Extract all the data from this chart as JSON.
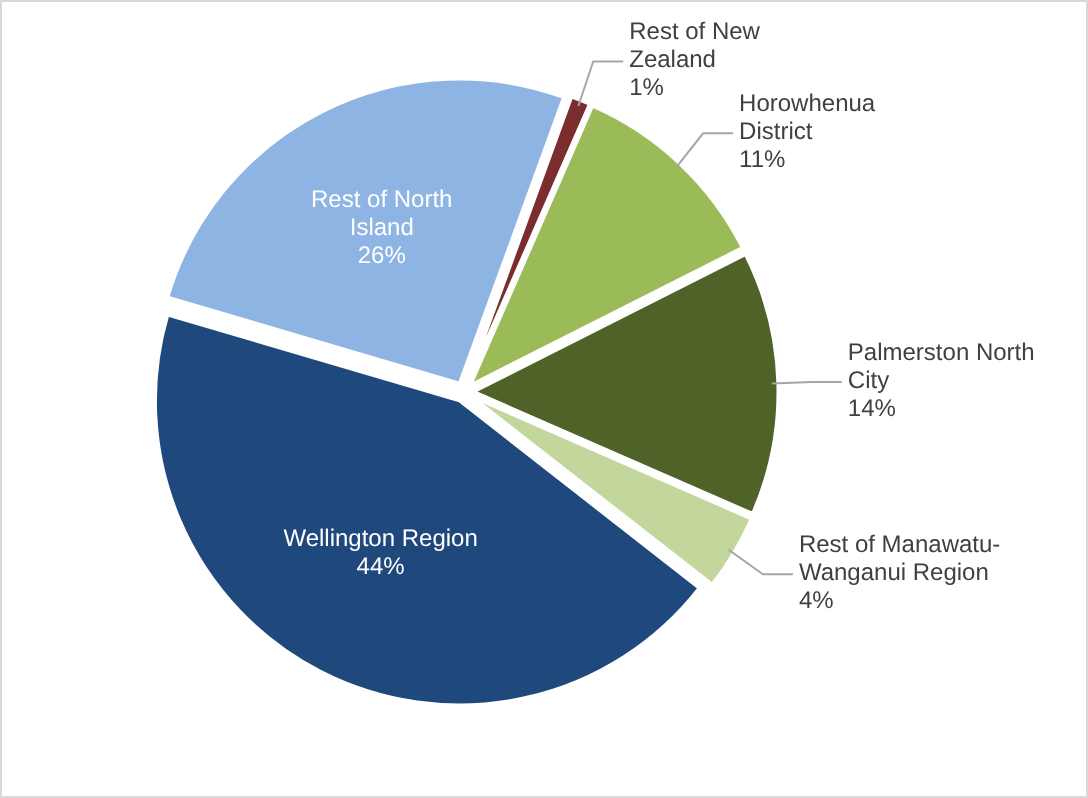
{
  "chart_data": {
    "type": "pie",
    "categories": [
      "Rest of New Zealand",
      "Horowhenua District",
      "Palmerston North City",
      "Rest of Manawatu-Wanganui Region",
      "Wellington Region",
      "Rest of North Island"
    ],
    "values": [
      1,
      11,
      14,
      4,
      44,
      26
    ],
    "colors": [
      "#7b2c2c",
      "#9bbb59",
      "#4f6228",
      "#c3d69b",
      "#1f497d",
      "#8eb4e3"
    ],
    "value_labels": [
      "1%",
      "11%",
      "14%",
      "4%",
      "44%",
      "26%"
    ]
  }
}
